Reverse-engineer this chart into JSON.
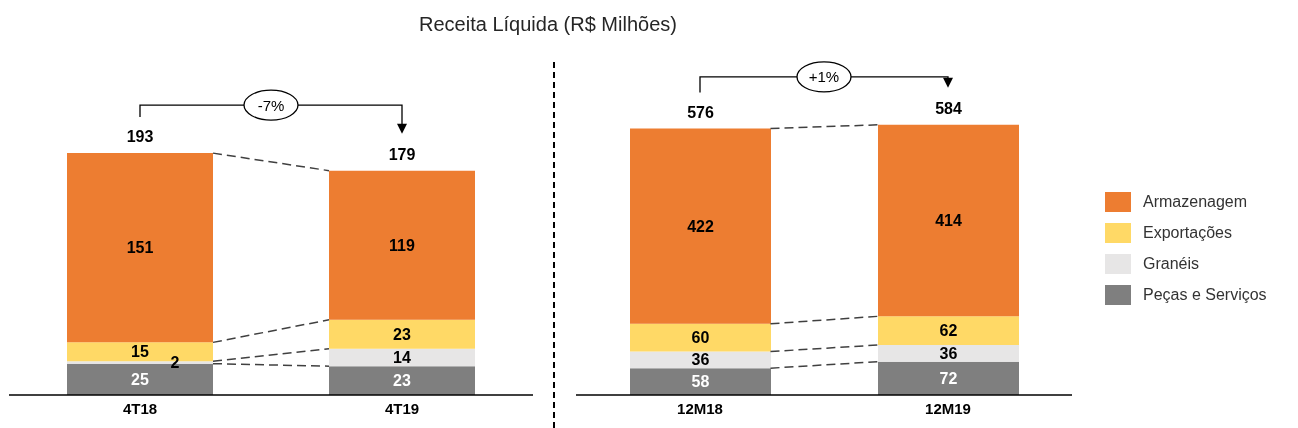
{
  "chart_data": [
    {
      "type": "bar",
      "title": "Receita Líquida (R$ Milhões)",
      "categories": [
        "4T18",
        "4T19"
      ],
      "stacked": true,
      "series": [
        {
          "color": "#7f7f7f",
          "values": [
            25,
            23
          ]
        },
        {
          "color": "#e7e6e6",
          "values": [
            2,
            14
          ]
        },
        {
          "color": "#ffd966",
          "values": [
            15,
            23
          ]
        },
        {
          "color": "#ed7d31",
          "values": [
            151,
            119
          ]
        }
      ],
      "data_labels": true,
      "totals": [
        "193",
        "179"
      ],
      "annotations": [
        "-7%"
      ],
      "tick_labels": "x"
    },
    {
      "type": "bar",
      "categories": [
        "12M18",
        "12M19"
      ],
      "stacked": true,
      "series": [
        {
          "name": "Peças e Serviços",
          "color": "#7f7f7f",
          "values": [
            58,
            72
          ]
        },
        {
          "name": "Granéis",
          "color": "#e7e6e6",
          "values": [
            36,
            36
          ]
        },
        {
          "name": "Exportações",
          "color": "#ffd966",
          "values": [
            60,
            62
          ]
        },
        {
          "name": "Armazenagem",
          "color": "#ed7d31",
          "values": [
            422,
            414
          ]
        }
      ],
      "data_labels": true,
      "totals": [
        "576",
        "584"
      ],
      "annotations": [
        "+1%"
      ],
      "tick_labels": "x",
      "legend": "right"
    }
  ]
}
